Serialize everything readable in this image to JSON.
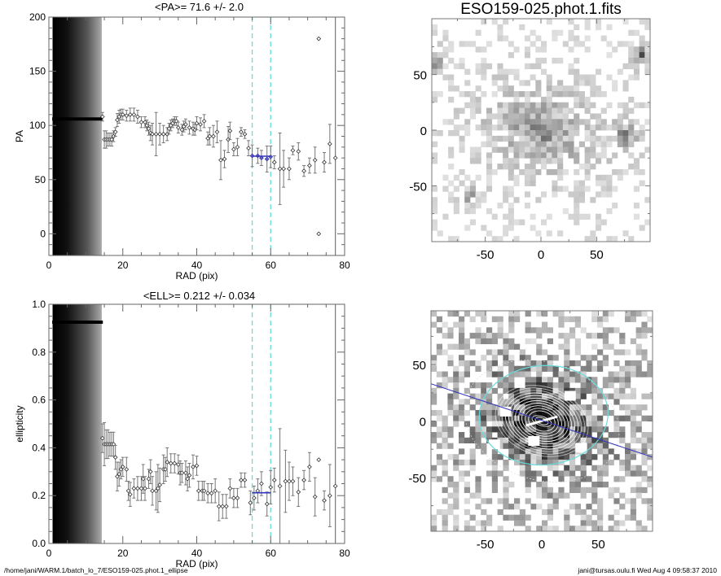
{
  "chart_data": [
    {
      "type": "scatter",
      "title": "<PA>=  71.6 +/-   2.0",
      "xlabel": "RAD (pix)",
      "ylabel": "PA",
      "xlim": [
        0,
        80
      ],
      "ylim": [
        -20,
        200
      ],
      "xticks": [
        "0",
        "20",
        "40",
        "60",
        "80"
      ],
      "yticks": [
        "0",
        "50",
        "100",
        "150",
        "200"
      ],
      "grid": false,
      "inner_value": 106,
      "inner_range": [
        1,
        14.3
      ],
      "mean": 71.6,
      "mean_range": [
        55,
        60
      ],
      "fit_range_lines": [
        55,
        60
      ],
      "colors": {
        "mean": "#3333bb",
        "fit_lines": "#66dddd",
        "points": "#555555"
      },
      "points": [
        [
          14.5,
          108,
          4
        ],
        [
          15,
          87,
          8
        ],
        [
          15.5,
          87,
          8
        ],
        [
          16,
          87,
          6
        ],
        [
          16.5,
          87,
          6
        ],
        [
          17,
          87,
          6
        ],
        [
          17.5,
          90,
          5
        ],
        [
          18,
          94,
          4
        ],
        [
          18.5,
          105,
          6
        ],
        [
          19,
          108,
          6
        ],
        [
          19.5,
          110,
          5
        ],
        [
          20,
          110,
          5
        ],
        [
          21,
          109,
          5
        ],
        [
          22,
          110,
          6
        ],
        [
          23,
          110,
          6
        ],
        [
          24,
          108,
          6
        ],
        [
          25,
          103,
          5
        ],
        [
          26,
          103,
          5
        ],
        [
          26.5,
          100,
          5
        ],
        [
          27,
          97,
          6
        ],
        [
          27.5,
          93,
          7
        ],
        [
          28,
          92,
          10
        ],
        [
          29,
          92,
          20
        ],
        [
          30,
          92,
          10
        ],
        [
          31,
          92,
          8
        ],
        [
          32,
          92,
          6
        ],
        [
          32.5,
          97,
          5
        ],
        [
          33,
          100,
          5
        ],
        [
          33.5,
          102,
          4
        ],
        [
          34,
          104,
          4
        ],
        [
          34.5,
          104,
          4
        ],
        [
          35,
          98,
          5
        ],
        [
          36,
          96,
          5
        ],
        [
          36.5,
          99,
          5
        ],
        [
          37,
          101,
          5
        ],
        [
          38,
          98,
          6
        ],
        [
          39,
          97,
          6
        ],
        [
          39.5,
          96,
          5
        ],
        [
          40,
          102,
          6
        ],
        [
          41,
          101,
          6
        ],
        [
          42,
          104,
          6
        ],
        [
          43,
          88,
          6
        ],
        [
          43.5,
          90,
          8
        ],
        [
          44.5,
          90,
          10
        ],
        [
          45.5,
          94,
          10
        ],
        [
          46.5,
          68,
          18
        ],
        [
          47.5,
          69,
          8
        ],
        [
          48.5,
          87,
          12
        ],
        [
          49,
          95,
          8
        ],
        [
          50,
          78,
          6
        ],
        [
          51,
          80,
          8
        ],
        [
          52,
          94,
          4
        ],
        [
          53,
          92,
          4
        ],
        [
          54,
          79,
          7
        ],
        [
          55,
          72,
          10
        ],
        [
          56.5,
          72,
          7
        ],
        [
          57.5,
          70,
          7
        ],
        [
          59,
          69,
          12
        ],
        [
          60,
          71,
          10
        ],
        [
          61,
          66,
          6
        ],
        [
          62.5,
          60,
          33
        ],
        [
          63.5,
          60,
          17
        ],
        [
          65,
          60,
          10
        ],
        [
          66,
          77,
          4
        ],
        [
          67.5,
          76,
          8
        ],
        [
          69,
          58,
          5
        ],
        [
          70.5,
          63,
          7
        ],
        [
          72,
          68,
          12
        ],
        [
          73,
          180,
          0
        ],
        [
          73,
          0,
          0
        ],
        [
          74.5,
          66,
          9
        ],
        [
          76,
          83,
          18
        ],
        [
          77.5,
          70,
          0
        ]
      ]
    },
    {
      "type": "scatter",
      "title": "<ELL>= 0.212 +/-  0.034",
      "xlabel": "RAD (pix)",
      "ylabel": "ellipticity",
      "xlim": [
        0,
        80
      ],
      "ylim": [
        0,
        1
      ],
      "xticks": [
        "0",
        "20",
        "40",
        "60",
        "80"
      ],
      "yticks": [
        "0.0",
        "0.2",
        "0.4",
        "0.6",
        "0.8",
        "1.0"
      ],
      "grid": false,
      "inner_value": 0.925,
      "inner_range": [
        1,
        14.3
      ],
      "mean": 0.212,
      "mean_range": [
        55,
        60
      ],
      "fit_range_lines": [
        55,
        60
      ],
      "colors": {
        "mean": "#3333bb",
        "fit_lines": "#66dddd",
        "points": "#555555"
      },
      "points": [
        [
          14.5,
          0.44,
          0.06
        ],
        [
          15,
          0.415,
          0.09
        ],
        [
          15.5,
          0.415,
          0.06
        ],
        [
          16,
          0.415,
          0.06
        ],
        [
          16.5,
          0.415,
          0.05
        ],
        [
          17,
          0.415,
          0.05
        ],
        [
          17.5,
          0.415,
          0.05
        ],
        [
          18,
          0.36,
          0.05
        ],
        [
          18.5,
          0.28,
          0.06
        ],
        [
          19,
          0.29,
          0.05
        ],
        [
          19.5,
          0.31,
          0.04
        ],
        [
          20,
          0.32,
          0.04
        ],
        [
          21,
          0.31,
          0.05
        ],
        [
          21.5,
          0.22,
          0.04
        ],
        [
          22,
          0.205,
          0.05
        ],
        [
          23,
          0.23,
          0.04
        ],
        [
          24,
          0.23,
          0.05
        ],
        [
          25,
          0.23,
          0.05
        ],
        [
          25.5,
          0.27,
          0.06
        ],
        [
          26,
          0.23,
          0.05
        ],
        [
          27,
          0.27,
          0.04
        ],
        [
          27.5,
          0.3,
          0.05
        ],
        [
          28,
          0.22,
          0.06
        ],
        [
          29,
          0.22,
          0.08
        ],
        [
          29.5,
          0.23,
          0.1
        ],
        [
          30,
          0.245,
          0.07
        ],
        [
          31,
          0.31,
          0.06
        ],
        [
          31.5,
          0.31,
          0.05
        ],
        [
          32,
          0.34,
          0.06
        ],
        [
          33,
          0.335,
          0.04
        ],
        [
          34,
          0.335,
          0.04
        ],
        [
          35,
          0.33,
          0.04
        ],
        [
          35.5,
          0.295,
          0.05
        ],
        [
          36,
          0.295,
          0.04
        ],
        [
          37,
          0.295,
          0.05
        ],
        [
          37.5,
          0.27,
          0.05
        ],
        [
          38,
          0.285,
          0.05
        ],
        [
          39,
          0.32,
          0.05
        ],
        [
          40,
          0.325,
          0.04
        ],
        [
          40.5,
          0.22,
          0.04
        ],
        [
          41.5,
          0.22,
          0.04
        ],
        [
          42,
          0.22,
          0.04
        ],
        [
          43,
          0.21,
          0.04
        ],
        [
          44,
          0.21,
          0.04
        ],
        [
          45,
          0.22,
          0.05
        ],
        [
          46,
          0.155,
          0.06
        ],
        [
          47,
          0.155,
          0.05
        ],
        [
          48,
          0.155,
          0.05
        ],
        [
          49,
          0.23,
          0.04
        ],
        [
          50,
          0.19,
          0.04
        ],
        [
          51,
          0.19,
          0.04
        ],
        [
          52,
          0.265,
          0.03
        ],
        [
          53,
          0.265,
          0.03
        ],
        [
          54.5,
          0.17,
          0.05
        ],
        [
          55.5,
          0.19,
          0.05
        ],
        [
          56.5,
          0.22,
          0.05
        ],
        [
          57.5,
          0.25,
          0.05
        ],
        [
          59,
          0.165,
          0.05
        ],
        [
          60,
          0.235,
          0.07
        ],
        [
          61,
          0.265,
          0.05
        ],
        [
          62.5,
          0.24,
          0.24
        ],
        [
          64,
          0.26,
          0.13
        ],
        [
          65,
          0.26,
          0.08
        ],
        [
          66,
          0.26,
          0.06
        ],
        [
          67.5,
          0.215,
          0.06
        ],
        [
          69,
          0.265,
          0.04
        ],
        [
          70.5,
          0.32,
          0.06
        ],
        [
          72,
          0.195,
          0.08
        ],
        [
          73,
          0.35,
          0
        ],
        [
          74.5,
          0.18,
          0.04
        ],
        [
          76,
          0.2,
          0.13
        ],
        [
          77.5,
          0.24,
          0
        ]
      ]
    }
  ],
  "images": {
    "title": "ESO159-025.phot.1.fits",
    "xticks": [
      "-50",
      "0",
      "50"
    ],
    "yticks": [
      "50",
      "0",
      "-50"
    ],
    "colors": {
      "model_ellipse": "#66dddd",
      "pa_line": "#3333bb",
      "contours": "#ffffff"
    }
  },
  "footer": {
    "path": "/home/jani/WARM.1/batch_lo_7/ESO159-025.phot.1_ellipse",
    "stamp": "jani@tursas.oulu.fi  Wed Aug  4 09:58:37 2010"
  }
}
